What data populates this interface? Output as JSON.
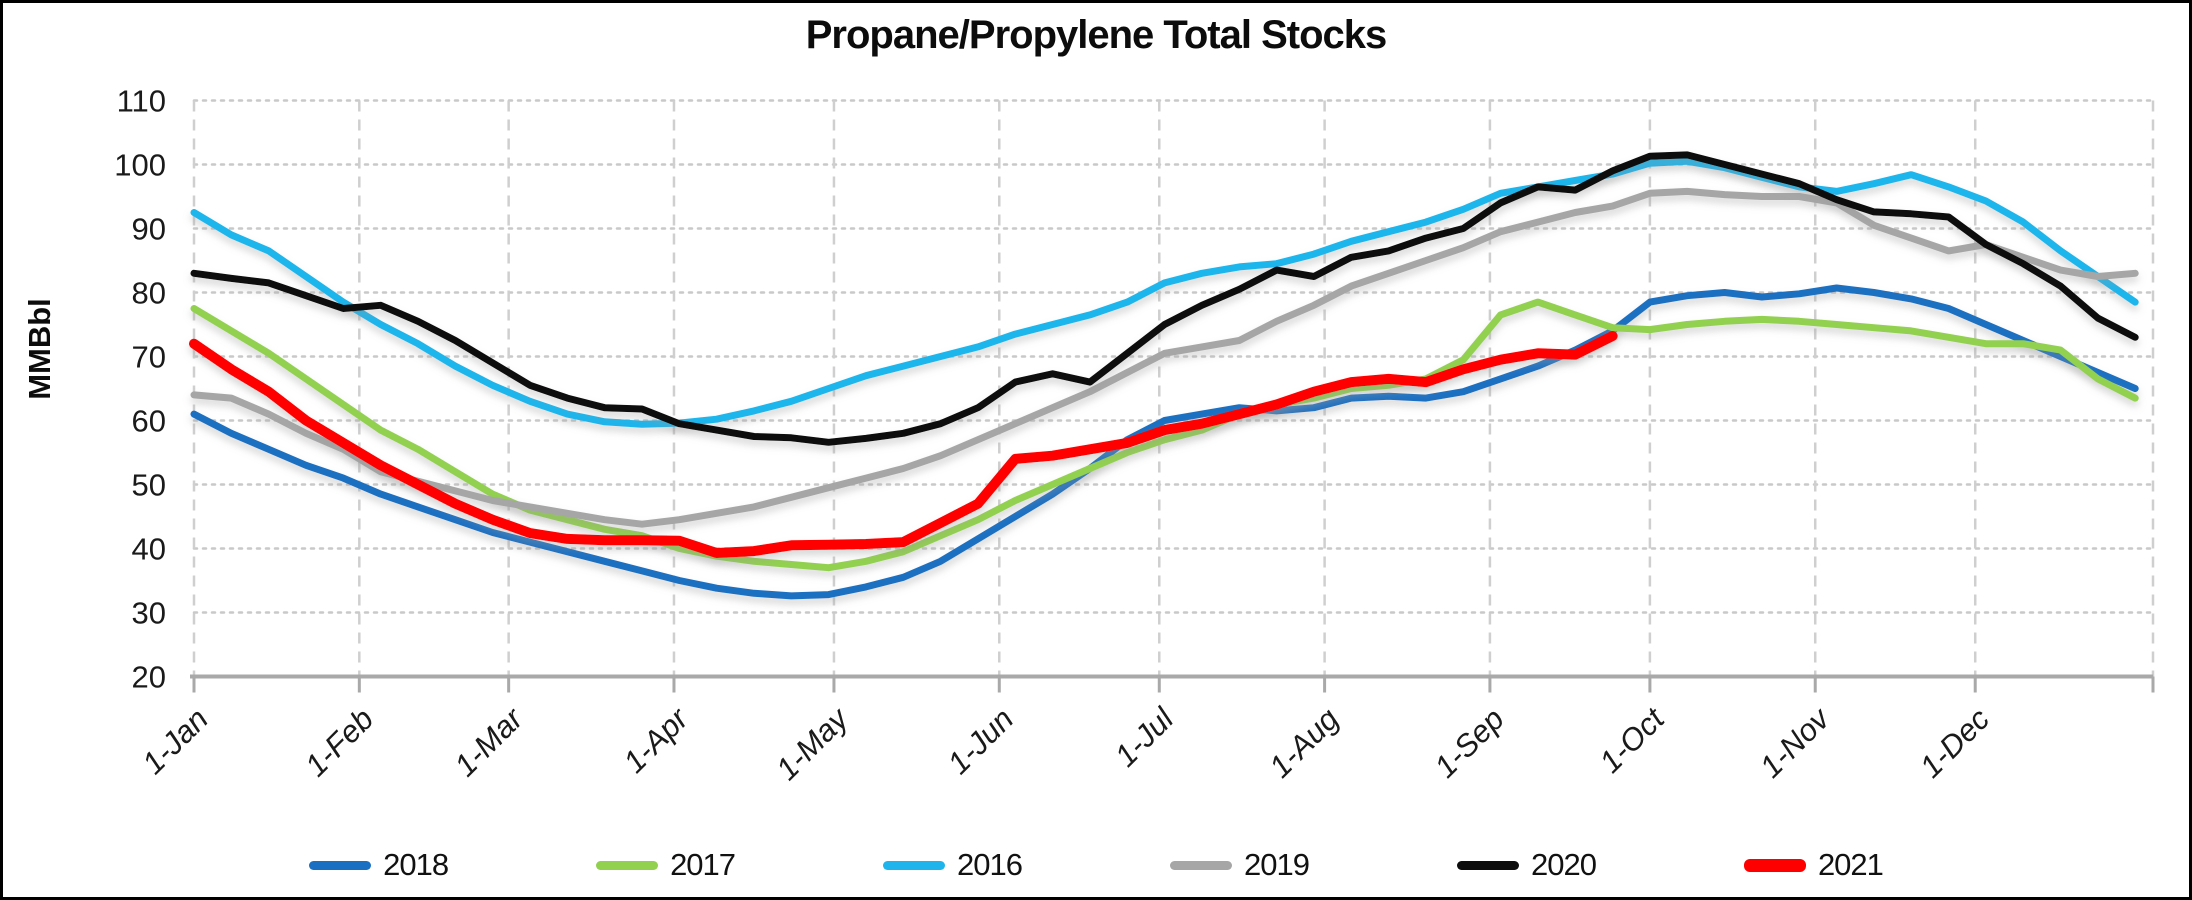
{
  "chart_data": {
    "type": "line",
    "title": "Propane/Propylene Total Stocks",
    "ylabel": "MMBbl",
    "ylim": [
      20,
      110
    ],
    "yticks": [
      110,
      100,
      90,
      80,
      70,
      60,
      50,
      40,
      30,
      20
    ],
    "xticklabels": [
      "1-Jan",
      "1-Feb",
      "1-Mar",
      "1-Apr",
      "1-May",
      "1-Jun",
      "1-Jul",
      "1-Aug",
      "1-Sep",
      "1-Oct",
      "1-Nov",
      "1-Dec"
    ],
    "x_start": "1-Jan",
    "x_step_days": 7,
    "grid": true,
    "legend_position": "bottom",
    "series": [
      {
        "name": "2018",
        "color": "#1a6fc2",
        "stroke_width": 7,
        "values": [
          61,
          58,
          55.5,
          53,
          51,
          48.5,
          46.5,
          44.5,
          42.5,
          41,
          39.5,
          38,
          36.5,
          35,
          33.8,
          33,
          32.6,
          32.8,
          34,
          35.5,
          38,
          41.5,
          45,
          48.5,
          52.5,
          57,
          60,
          61,
          62,
          61.5,
          62,
          63.5,
          63.8,
          63.5,
          64.5,
          66.5,
          68.5,
          71,
          74,
          78.5,
          79.5,
          80,
          79.3,
          79.8,
          80.7,
          80,
          79,
          77.5,
          75,
          72.5,
          70,
          67.5,
          65
        ]
      },
      {
        "name": "2017",
        "color": "#92d050",
        "stroke_width": 7,
        "values": [
          77.5,
          74,
          70.5,
          66.5,
          62.5,
          58.5,
          55.5,
          52,
          48.5,
          46,
          44.5,
          43,
          42,
          40,
          38.8,
          38,
          37.5,
          37,
          38,
          39.5,
          42,
          44.5,
          47.5,
          50,
          52.5,
          55,
          57,
          58.5,
          61,
          62.5,
          63.5,
          65,
          65.5,
          66.5,
          69.5,
          76.5,
          78.5,
          76.5,
          74.5,
          74.2,
          75,
          75.5,
          75.8,
          75.5,
          75,
          74.5,
          74,
          73,
          72,
          72,
          71,
          66.5,
          63.5
        ]
      },
      {
        "name": "2016",
        "color": "#1fb5ec",
        "stroke_width": 7,
        "values": [
          92.5,
          89,
          86.5,
          82.5,
          78.5,
          75,
          72,
          68.5,
          65.5,
          63,
          61,
          59.8,
          59.4,
          59.6,
          60.2,
          61.5,
          63,
          65,
          67,
          68.5,
          70,
          71.5,
          73.5,
          75,
          76.5,
          78.5,
          81.5,
          83,
          84,
          84.5,
          86,
          88,
          89.5,
          91,
          93,
          95.5,
          96.5,
          97.5,
          98.5,
          100.2,
          100.5,
          99.5,
          98,
          96.5,
          95.8,
          97,
          98.4,
          96.5,
          94.3,
          91,
          86.5,
          82.5,
          78.5
        ]
      },
      {
        "name": "2019",
        "color": "#a6a6a6",
        "stroke_width": 7,
        "values": [
          64,
          63.5,
          61,
          58,
          55.5,
          52,
          50.5,
          49,
          47.5,
          46.5,
          45.5,
          44.5,
          43.8,
          44.5,
          45.5,
          46.5,
          48,
          49.5,
          51,
          52.5,
          54.5,
          57,
          59.5,
          62,
          64.5,
          67.5,
          70.5,
          71.5,
          72.5,
          75.5,
          78,
          81,
          83,
          85,
          87,
          89.5,
          91,
          92.5,
          93.5,
          95.5,
          95.8,
          95.3,
          95,
          95,
          94,
          90.5,
          88.5,
          86.5,
          87.5,
          85.5,
          83.5,
          82.5,
          83
        ]
      },
      {
        "name": "2020",
        "color": "#0c0c0c",
        "stroke_width": 7,
        "values": [
          83,
          82.2,
          81.5,
          79.5,
          77.5,
          78,
          75.5,
          72.5,
          69,
          65.5,
          63.5,
          62,
          61.8,
          59.5,
          58.5,
          57.5,
          57.3,
          56.6,
          57.2,
          58,
          59.5,
          62,
          66,
          67.3,
          66,
          70.5,
          75,
          78,
          80.5,
          83.5,
          82.5,
          85.5,
          86.5,
          88.5,
          90,
          94,
          96.5,
          96,
          99,
          101.3,
          101.5,
          100,
          98.5,
          97,
          94.5,
          92.6,
          92.3,
          91.8,
          87.5,
          84.5,
          81,
          76,
          73
        ]
      },
      {
        "name": "2021",
        "color": "#fe0000",
        "stroke_width": 10,
        "values": [
          72,
          68,
          64.5,
          60,
          56.5,
          53,
          50,
          47,
          44.5,
          42.4,
          41.5,
          41.3,
          41.3,
          41.2,
          39.3,
          39.6,
          40.5,
          40.6,
          40.7,
          41,
          44,
          47,
          54,
          54.5,
          55.5,
          56.5,
          58.5,
          59.5,
          61,
          62.5,
          64.5,
          66,
          66.5,
          66,
          68,
          69.5,
          70.5,
          70.3,
          73.2
        ]
      }
    ]
  }
}
